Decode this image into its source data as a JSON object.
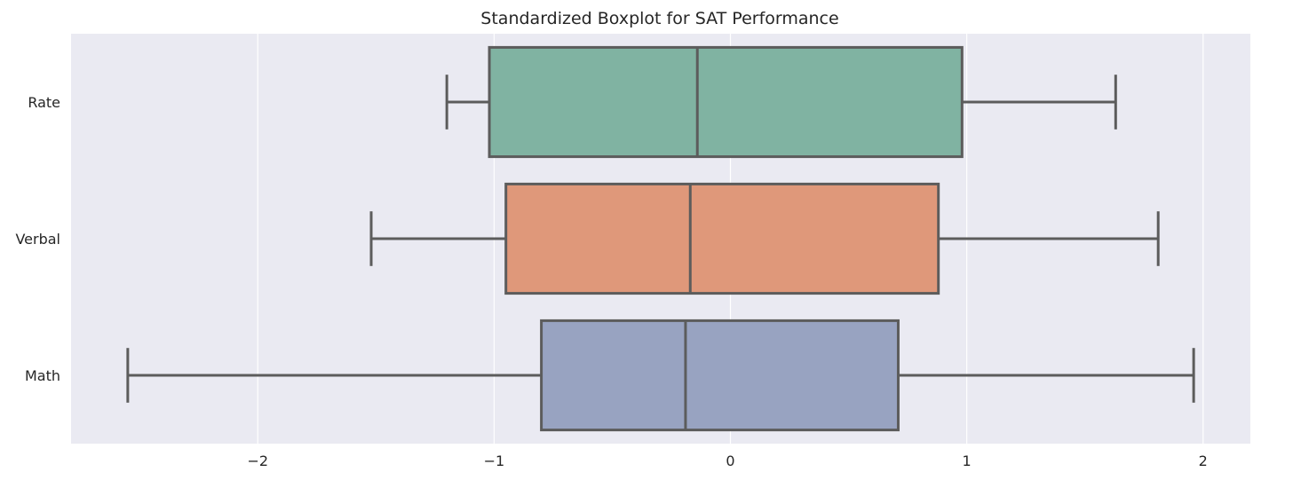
{
  "chart_data": {
    "type": "boxplot",
    "orientation": "horizontal",
    "title": "Standardized Boxplot for SAT Performance",
    "xlabel": "",
    "ylabel": "",
    "xlim": [
      -2.79,
      2.2
    ],
    "x_ticks": [
      -2,
      -1,
      0,
      1,
      2
    ],
    "x_tick_labels": [
      "−2",
      "−1",
      "0",
      "1",
      "2"
    ],
    "grid": true,
    "categories": [
      "Rate",
      "Verbal",
      "Math"
    ],
    "boxes": [
      {
        "category": "Rate",
        "whisker_low": -1.2,
        "q1": -1.02,
        "median": -0.14,
        "q3": 0.98,
        "whisker_high": 1.63,
        "color": "#80b3a2"
      },
      {
        "category": "Verbal",
        "whisker_low": -1.52,
        "q1": -0.95,
        "median": -0.17,
        "q3": 0.88,
        "whisker_high": 1.81,
        "color": "#df987a"
      },
      {
        "category": "Math",
        "whisker_low": -2.55,
        "q1": -0.8,
        "median": -0.19,
        "q3": 0.71,
        "whisker_high": 1.96,
        "color": "#98a3c1"
      }
    ],
    "colors": {
      "background": "#eaeaf2",
      "grid": "#ffffff",
      "box_edge": "#5c5c5c"
    }
  }
}
